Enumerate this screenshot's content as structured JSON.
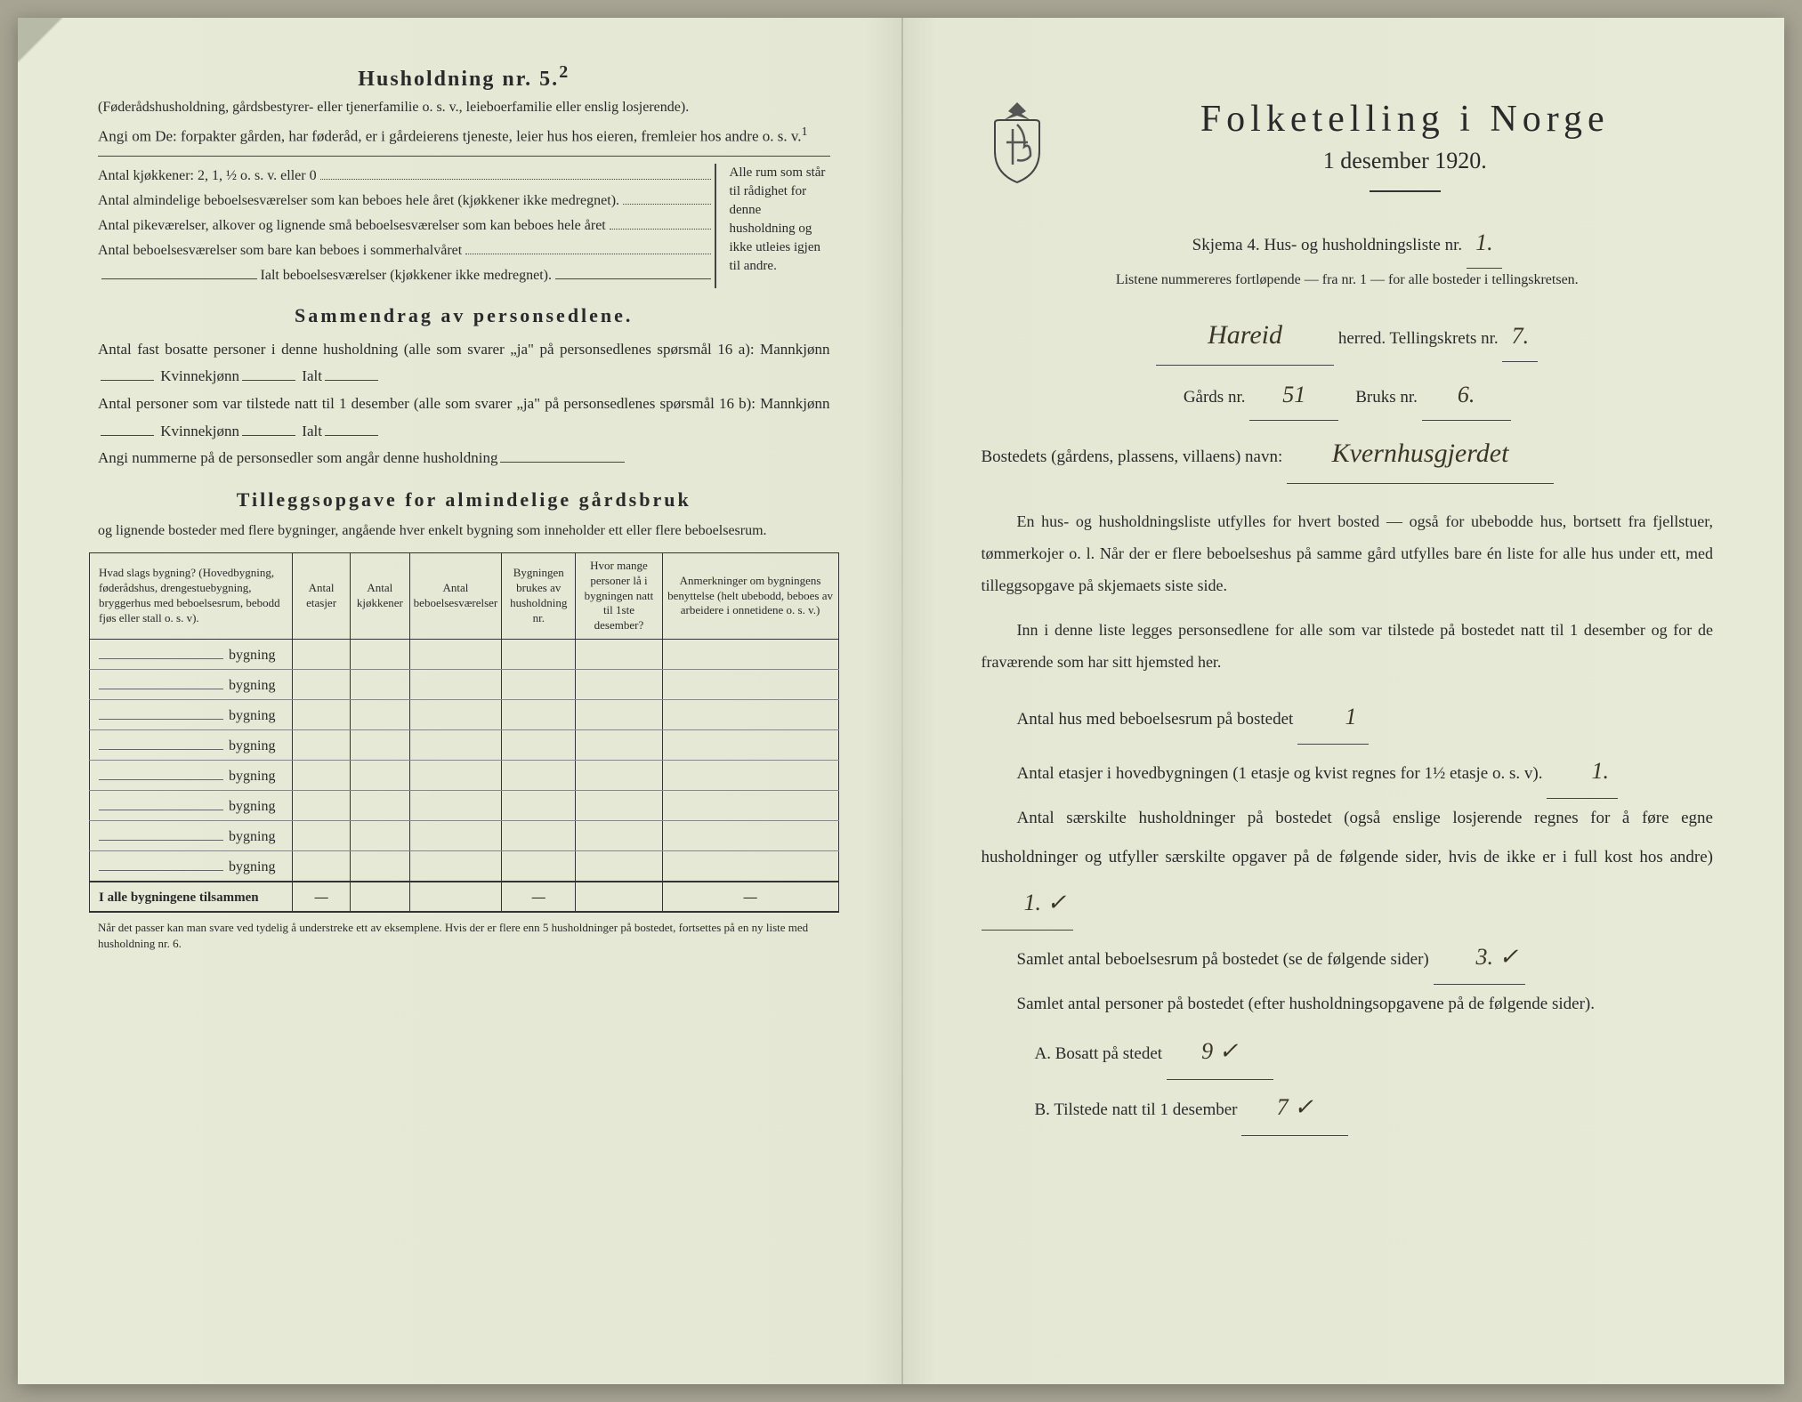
{
  "left": {
    "household_title": "Husholdning nr. 5.",
    "household_sup": "2",
    "household_sub": "(Føderådshusholdning, gårdsbestyrer- eller tjenerfamilie o. s. v., leieboerfamilie eller enslig losjerende).",
    "angi": "Angi om De: forpakter gården, har føderåd, er i gårdeierens tjeneste, leier hus hos eieren, fremleier hos andre o. s. v.",
    "kjokken": "Antal kjøkkener: 2, 1, ½ o. s. v. eller 0",
    "brace_rows": [
      "Antal almindelige beboelsesværelser som kan beboes hele året (kjøkkener ikke medregnet).",
      "Antal pikeværelser, alkover og lignende små beboelsesværelser som kan beboes hele året",
      "Antal beboelsesværelser som bare kan beboes i sommerhalvåret",
      "Ialt beboelsesværelser (kjøkkener ikke medregnet)."
    ],
    "brace_right": "Alle rum som står til rådighet for denne husholdning og ikke utleies igjen til andre.",
    "sammendrag_title": "Sammendrag av personsedlene.",
    "sammen_p1": "Antal fast bosatte personer i denne husholdning (alle som svarer „ja\" på personsedlenes spørsmål 16 a): Mannkjønn",
    "kvinne": "Kvinnekjønn",
    "ialt": "Ialt",
    "sammen_p2": "Antal personer som var tilstede natt til 1 desember (alle som svarer „ja\" på personsedlenes spørsmål 16 b): Mannkjønn",
    "angi_num": "Angi nummerne på de personsedler som angår denne husholdning",
    "tillegg_title": "Tilleggsopgave for almindelige gårdsbruk",
    "tillegg_sub": "og lignende bosteder med flere bygninger, angående hver enkelt bygning som inneholder ett eller flere beboelsesrum.",
    "table": {
      "headers": [
        "Hvad slags bygning?\n(Hovedbygning, føderådshus, drengestuebygning, bryggerhus med beboelsesrum, bebodd fjøs eller stall o. s. v).",
        "Antal etasjer",
        "Antal kjøkkener",
        "Antal beboelsesværelser",
        "Bygningen brukes av husholdning nr.",
        "Hvor mange personer lå i bygningen natt til 1ste desember?",
        "Anmerkninger om bygningens benyttelse (helt ubebodd, beboes av arbeidere i onnetidene o. s. v.)"
      ],
      "row_label": "bygning",
      "row_count": 8,
      "total_label": "I alle bygningene tilsammen"
    },
    "footnote": "Når det passer kan man svare ved tydelig å understreke ett av eksemplene.\nHvis der er flere enn 5 husholdninger på bostedet, fortsettes på en ny liste med husholdning nr. 6."
  },
  "right": {
    "title": "Folketelling i Norge",
    "date": "1 desember 1920.",
    "skjema": "Skjema 4.  Hus- og husholdningsliste nr.",
    "skjema_val": "1.",
    "listene": "Listene nummereres fortløpende — fra nr. 1 — for alle bosteder i tellingskretsen.",
    "herred_val": "Hareid",
    "herred_label": "herred.  Tellingskrets nr.",
    "krets_val": "7.",
    "gards_label": "Gårds nr.",
    "gards_val": "51",
    "bruks_label": "Bruks nr.",
    "bruks_val": "6.",
    "bosted_label": "Bostedets (gårdens, plassens, villaens) navn:",
    "bosted_val": "Kvernhusgjerdet",
    "p1": "En hus- og husholdningsliste utfylles for hvert bosted — også for ubebodde hus, bortsett fra fjellstuer, tømmerkojer o. l.  Når der er flere beboelseshus på samme gård utfylles bare én liste for alle hus under ett, med tilleggsopgave på skjemaets siste side.",
    "p2": "Inn i denne liste legges personsedlene for alle som var tilstede på bostedet natt til 1 desember og for de fraværende som har sitt hjemsted her.",
    "f1_label": "Antal hus med beboelsesrum på bostedet",
    "f1_val": "1",
    "f2_label": "Antal etasjer i hovedbygningen (1 etasje og kvist regnes for 1½ etasje o. s. v).",
    "f2_val": "1.",
    "f3_label": "Antal særskilte husholdninger på bostedet (også enslige losjerende regnes for å føre egne husholdninger og utfyller særskilte opgaver på de følgende sider, hvis de ikke er i full kost hos andre)",
    "f3_val": "1. ✓",
    "f4_label": "Samlet antal beboelsesrum på bostedet (se de følgende sider)",
    "f4_val": "3. ✓",
    "f5_label": "Samlet antal personer på bostedet (efter husholdningsopgavene på de følgende sider).",
    "fa_label": "A.  Bosatt på stedet",
    "fa_val": "9 ✓",
    "fb_label": "B.  Tilstede natt til 1 desember",
    "fb_val": "7 ✓"
  },
  "colors": {
    "paper": "#e8ead8",
    "ink": "#2a2a2a",
    "handwriting": "#3a3528"
  }
}
